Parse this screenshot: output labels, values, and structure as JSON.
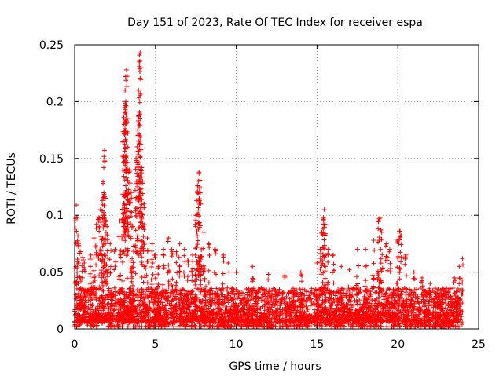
{
  "chart_data": {
    "type": "scatter",
    "title": "Day 151 of 2023, Rate Of TEC Index for receiver espa",
    "xlabel": "GPS time / hours",
    "ylabel": "ROTI / TECUs",
    "xlim": [
      0,
      25
    ],
    "ylim": [
      0,
      0.25
    ],
    "x_ticks": [
      0,
      5,
      10,
      15,
      20,
      25
    ],
    "x_tick_labels": [
      "0",
      "5",
      "10",
      "15",
      "20",
      "25"
    ],
    "y_ticks": [
      0,
      0.05,
      0.1,
      0.15,
      0.2,
      0.25
    ],
    "y_tick_labels": [
      "0",
      "0.05",
      "0.1",
      "0.15",
      "0.2",
      "0.25"
    ],
    "grid": true,
    "marker": "plus",
    "marker_color": "#ff0000",
    "data_extent": {
      "x": [
        0,
        24
      ],
      "y": [
        0.002,
        0.243
      ]
    },
    "series": [
      {
        "name": "ROTI",
        "note": "dense cloud 0.005-0.04 across 0-24 h; selected visible peaks listed",
        "points": [
          [
            0.1,
            0.109
          ],
          [
            0.15,
            0.098
          ],
          [
            0.2,
            0.082
          ],
          [
            0.35,
            0.068
          ],
          [
            0.5,
            0.063
          ],
          [
            0.6,
            0.058
          ],
          [
            1.0,
            0.065
          ],
          [
            1.2,
            0.08
          ],
          [
            1.35,
            0.092
          ],
          [
            1.5,
            0.098
          ],
          [
            1.6,
            0.105
          ],
          [
            1.7,
            0.113
          ],
          [
            1.75,
            0.128
          ],
          [
            1.8,
            0.142
          ],
          [
            1.85,
            0.157
          ],
          [
            1.9,
            0.115
          ],
          [
            2.0,
            0.09
          ],
          [
            2.2,
            0.075
          ],
          [
            2.5,
            0.07
          ],
          [
            2.8,
            0.095
          ],
          [
            3.0,
            0.165
          ],
          [
            3.05,
            0.18
          ],
          [
            3.1,
            0.195
          ],
          [
            3.12,
            0.21
          ],
          [
            3.15,
            0.222
          ],
          [
            3.2,
            0.228
          ],
          [
            3.25,
            0.185
          ],
          [
            3.3,
            0.16
          ],
          [
            3.4,
            0.14
          ],
          [
            3.5,
            0.12
          ],
          [
            3.6,
            0.09
          ],
          [
            3.8,
            0.15
          ],
          [
            3.9,
            0.175
          ],
          [
            3.95,
            0.21
          ],
          [
            4.0,
            0.235
          ],
          [
            4.05,
            0.243
          ],
          [
            4.1,
            0.162
          ],
          [
            4.15,
            0.142
          ],
          [
            4.2,
            0.13
          ],
          [
            4.3,
            0.11
          ],
          [
            4.5,
            0.08
          ],
          [
            4.8,
            0.075
          ],
          [
            5.0,
            0.065
          ],
          [
            5.2,
            0.055
          ],
          [
            5.5,
            0.07
          ],
          [
            5.8,
            0.08
          ],
          [
            6.0,
            0.07
          ],
          [
            6.3,
            0.068
          ],
          [
            6.5,
            0.075
          ],
          [
            6.8,
            0.07
          ],
          [
            7.0,
            0.06
          ],
          [
            7.3,
            0.065
          ],
          [
            7.5,
            0.1
          ],
          [
            7.6,
            0.12
          ],
          [
            7.65,
            0.13
          ],
          [
            7.7,
            0.138
          ],
          [
            7.75,
            0.125
          ],
          [
            7.8,
            0.11
          ],
          [
            8.0,
            0.085
          ],
          [
            8.3,
            0.075
          ],
          [
            8.7,
            0.07
          ],
          [
            9.2,
            0.065
          ],
          [
            9.5,
            0.058
          ],
          [
            10.0,
            0.05
          ],
          [
            11.0,
            0.055
          ],
          [
            12.0,
            0.048
          ],
          [
            13.0,
            0.047
          ],
          [
            14.0,
            0.05
          ],
          [
            15.0,
            0.058
          ],
          [
            15.2,
            0.07
          ],
          [
            15.3,
            0.085
          ],
          [
            15.4,
            0.098
          ],
          [
            15.45,
            0.105
          ],
          [
            15.5,
            0.092
          ],
          [
            15.7,
            0.07
          ],
          [
            16.0,
            0.065
          ],
          [
            16.5,
            0.055
          ],
          [
            17.0,
            0.052
          ],
          [
            17.5,
            0.07
          ],
          [
            18.0,
            0.07
          ],
          [
            18.5,
            0.078
          ],
          [
            18.8,
            0.095
          ],
          [
            18.9,
            0.098
          ],
          [
            19.0,
            0.085
          ],
          [
            19.3,
            0.075
          ],
          [
            19.5,
            0.07
          ],
          [
            20.0,
            0.078
          ],
          [
            20.1,
            0.086
          ],
          [
            20.2,
            0.082
          ],
          [
            20.5,
            0.065
          ],
          [
            21.0,
            0.05
          ],
          [
            21.5,
            0.045
          ],
          [
            22.0,
            0.04
          ],
          [
            22.5,
            0.035
          ],
          [
            23.0,
            0.03
          ],
          [
            23.5,
            0.045
          ],
          [
            23.8,
            0.055
          ],
          [
            24.0,
            0.062
          ]
        ]
      }
    ]
  }
}
